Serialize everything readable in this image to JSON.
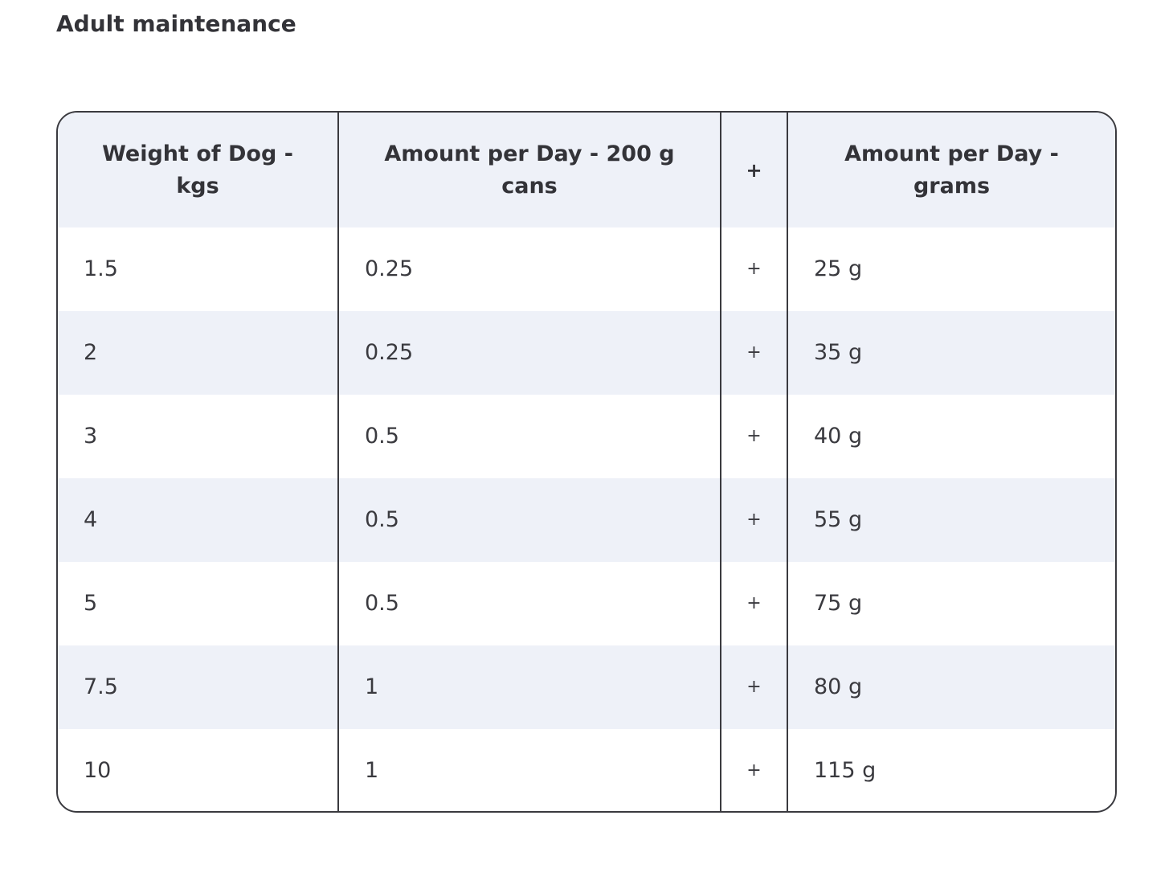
{
  "title": "Adult maintenance",
  "table": {
    "headers": [
      "Weight of Dog - kgs",
      "Amount per Day - 200 g cans",
      "+",
      "Amount per Day - grams"
    ],
    "rows": [
      [
        "1.5",
        "0.25",
        "+",
        "25 g"
      ],
      [
        "2",
        "0.25",
        "+",
        "35 g"
      ],
      [
        "3",
        "0.5",
        "+",
        "40 g"
      ],
      [
        "4",
        "0.5",
        "+",
        "55 g"
      ],
      [
        "5",
        "0.5",
        "+",
        "75 g"
      ],
      [
        "7.5",
        "1",
        "+",
        "80 g"
      ],
      [
        "10",
        "1",
        "+",
        "115 g"
      ]
    ]
  }
}
